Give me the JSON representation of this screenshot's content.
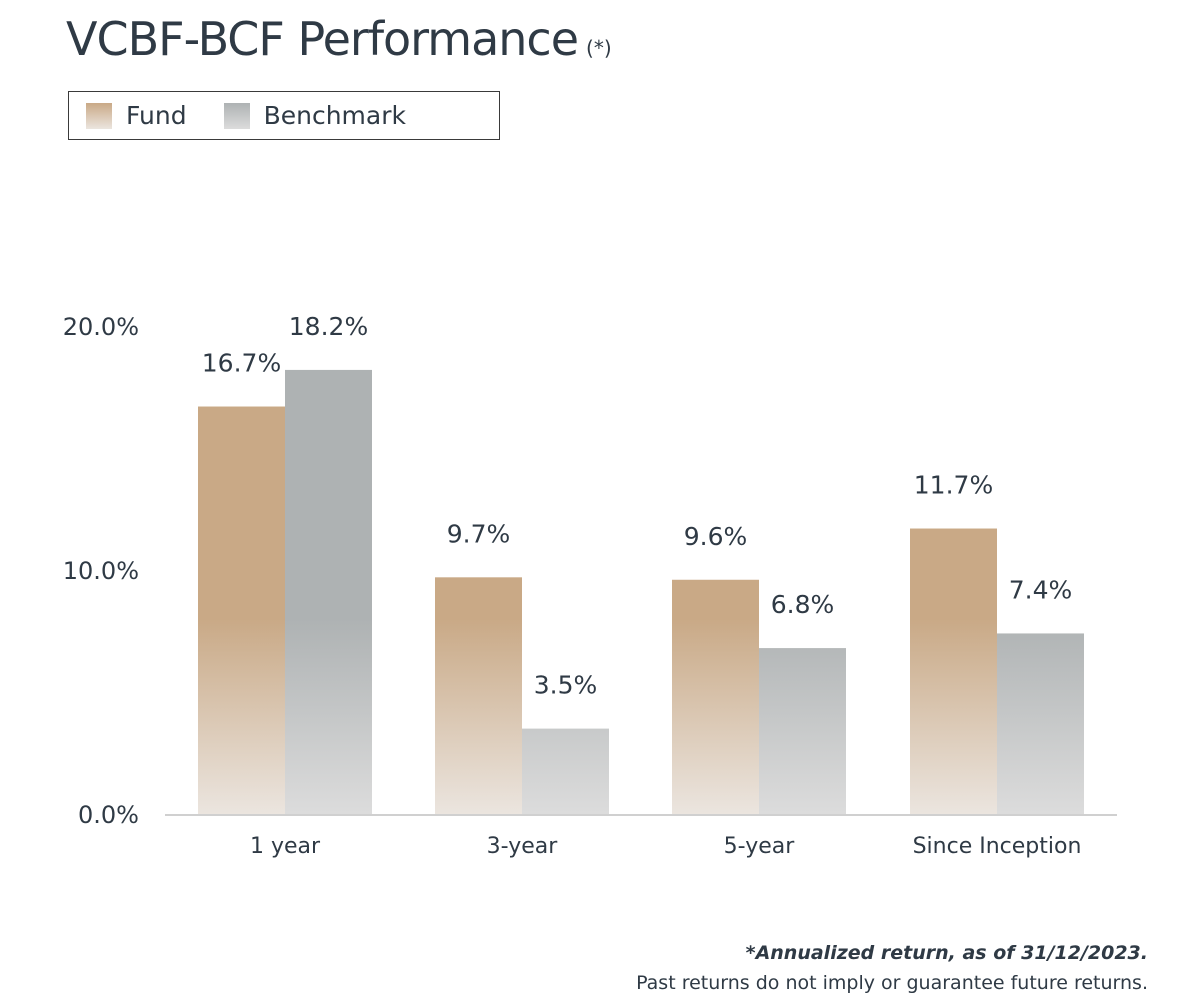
{
  "title": "VCBF-BCF Performance",
  "title_note": "(*)",
  "colors": {
    "fund_top": "#c9a986",
    "fund_bottom": "#ebe5df",
    "benchmark_top": "#aeb2b3",
    "benchmark_bottom": "#dcdcdc",
    "axis": "#d0d0d0",
    "text": "#2f3a45"
  },
  "chart_data": {
    "type": "bar",
    "categories": [
      "1 year",
      "3-year",
      "5-year",
      "Since Inception"
    ],
    "series": [
      {
        "name": "Fund",
        "values": [
          16.7,
          9.7,
          9.6,
          11.7
        ],
        "labels": [
          "16.7%",
          "9.7%",
          "9.6%",
          "11.7%"
        ]
      },
      {
        "name": "Benchmark",
        "values": [
          18.2,
          3.5,
          6.8,
          7.4
        ],
        "labels": [
          "18.2%",
          "3.5%",
          "6.8%",
          "7.4%"
        ]
      }
    ],
    "ylim": [
      0,
      20
    ],
    "yticks": [
      0,
      10,
      20
    ],
    "ytick_labels": [
      "0.0%",
      "10.0%",
      "20.0%"
    ],
    "legend": "top-left",
    "grid": false
  },
  "footnotes": {
    "line1": "*Annualized return, as of 31/12/2023.",
    "line2": "Past returns do not imply or guarantee future returns."
  }
}
